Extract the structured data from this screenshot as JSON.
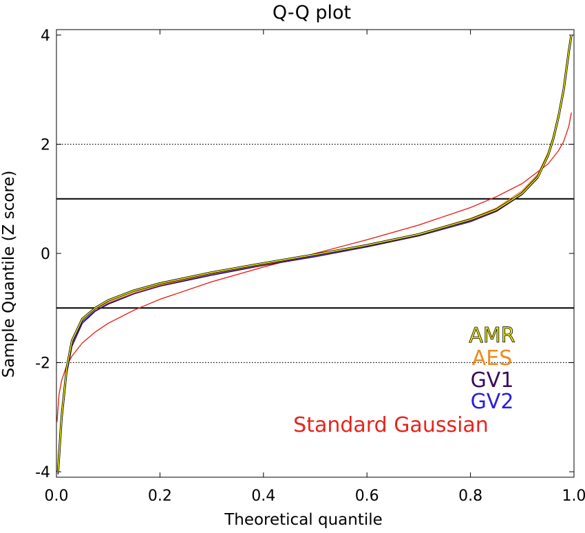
{
  "chart_data": {
    "type": "line",
    "title": "Q-Q plot",
    "xlabel": "Theoretical quantile",
    "ylabel": "Sample Quantile (Z score)",
    "xlim": [
      0,
      1
    ],
    "ylim": [
      -4.1,
      4.1
    ],
    "x_ticks": [
      "0.0",
      "0.2",
      "0.4",
      "0.6",
      "0.8",
      "1.0"
    ],
    "y_ticks": [
      "4",
      "2",
      "0",
      "-2",
      "-4"
    ],
    "reference_lines": [
      {
        "y": 2,
        "style": "dotted"
      },
      {
        "y": 1,
        "style": "solid"
      },
      {
        "y": -1,
        "style": "solid"
      },
      {
        "y": -2,
        "style": "dotted"
      }
    ],
    "legend_placement": "lower-right",
    "series": [
      {
        "name": "AMR",
        "color": "#e8e800",
        "outline": "#000000",
        "x": [
          0.003,
          0.01,
          0.02,
          0.03,
          0.05,
          0.075,
          0.1,
          0.15,
          0.2,
          0.3,
          0.4,
          0.5,
          0.6,
          0.7,
          0.8,
          0.85,
          0.9,
          0.93,
          0.95,
          0.96,
          0.97,
          0.98,
          0.99,
          0.995
        ],
        "y": [
          -4.0,
          -3.0,
          -2.1,
          -1.6,
          -1.2,
          -1.0,
          -0.86,
          -0.68,
          -0.55,
          -0.35,
          -0.18,
          -0.02,
          0.15,
          0.35,
          0.62,
          0.8,
          1.1,
          1.4,
          1.8,
          2.1,
          2.5,
          3.0,
          3.7,
          4.0
        ]
      },
      {
        "name": "AES",
        "color": "#f08a1c",
        "x": [
          0.003,
          0.01,
          0.02,
          0.03,
          0.05,
          0.075,
          0.1,
          0.15,
          0.2,
          0.3,
          0.4,
          0.5,
          0.6,
          0.7,
          0.8,
          0.85,
          0.9,
          0.93,
          0.95,
          0.96,
          0.97,
          0.98,
          0.99,
          0.995
        ],
        "y": [
          -3.8,
          -2.9,
          -2.1,
          -1.6,
          -1.22,
          -1.02,
          -0.9,
          -0.72,
          -0.58,
          -0.37,
          -0.2,
          -0.03,
          0.15,
          0.36,
          0.64,
          0.83,
          1.15,
          1.45,
          1.85,
          2.15,
          2.55,
          3.0,
          3.7,
          4.0
        ]
      },
      {
        "name": "GV1",
        "color": "#3a0a5e",
        "x": [
          0.003,
          0.01,
          0.02,
          0.03,
          0.05,
          0.075,
          0.1,
          0.15,
          0.2,
          0.3,
          0.4,
          0.5,
          0.6,
          0.7,
          0.8,
          0.85,
          0.9,
          0.93,
          0.95,
          0.96,
          0.97,
          0.98,
          0.99,
          0.995
        ],
        "y": [
          -4.05,
          -3.1,
          -2.2,
          -1.7,
          -1.28,
          -1.06,
          -0.93,
          -0.74,
          -0.6,
          -0.4,
          -0.22,
          -0.06,
          0.12,
          0.32,
          0.58,
          0.77,
          1.08,
          1.38,
          1.78,
          2.1,
          2.5,
          3.0,
          3.7,
          4.0
        ]
      },
      {
        "name": "GV2",
        "color": "#2a1ee0",
        "x": [
          0.003,
          0.01,
          0.02,
          0.03,
          0.05,
          0.075,
          0.1,
          0.15,
          0.2,
          0.3,
          0.4,
          0.5,
          0.6,
          0.7,
          0.8,
          0.85,
          0.9,
          0.93,
          0.95,
          0.96,
          0.97,
          0.98,
          0.99,
          0.995
        ],
        "y": [
          -4.0,
          -3.05,
          -2.15,
          -1.65,
          -1.25,
          -1.05,
          -0.92,
          -0.73,
          -0.59,
          -0.38,
          -0.21,
          -0.04,
          0.14,
          0.34,
          0.6,
          0.79,
          1.12,
          1.42,
          1.82,
          2.12,
          2.52,
          3.0,
          3.65,
          4.0
        ]
      },
      {
        "name": "Standard Gaussian",
        "color": "#e8241c",
        "x": [
          0.001,
          0.005,
          0.01,
          0.02,
          0.03,
          0.05,
          0.075,
          0.1,
          0.15,
          0.2,
          0.3,
          0.4,
          0.5,
          0.6,
          0.7,
          0.8,
          0.85,
          0.9,
          0.95,
          0.97,
          0.98,
          0.99,
          0.995
        ],
        "y": [
          -3.09,
          -2.58,
          -2.33,
          -2.05,
          -1.88,
          -1.64,
          -1.44,
          -1.28,
          -1.04,
          -0.84,
          -0.52,
          -0.25,
          0.0,
          0.25,
          0.52,
          0.84,
          1.04,
          1.28,
          1.64,
          1.88,
          2.05,
          2.33,
          2.58
        ]
      }
    ]
  }
}
